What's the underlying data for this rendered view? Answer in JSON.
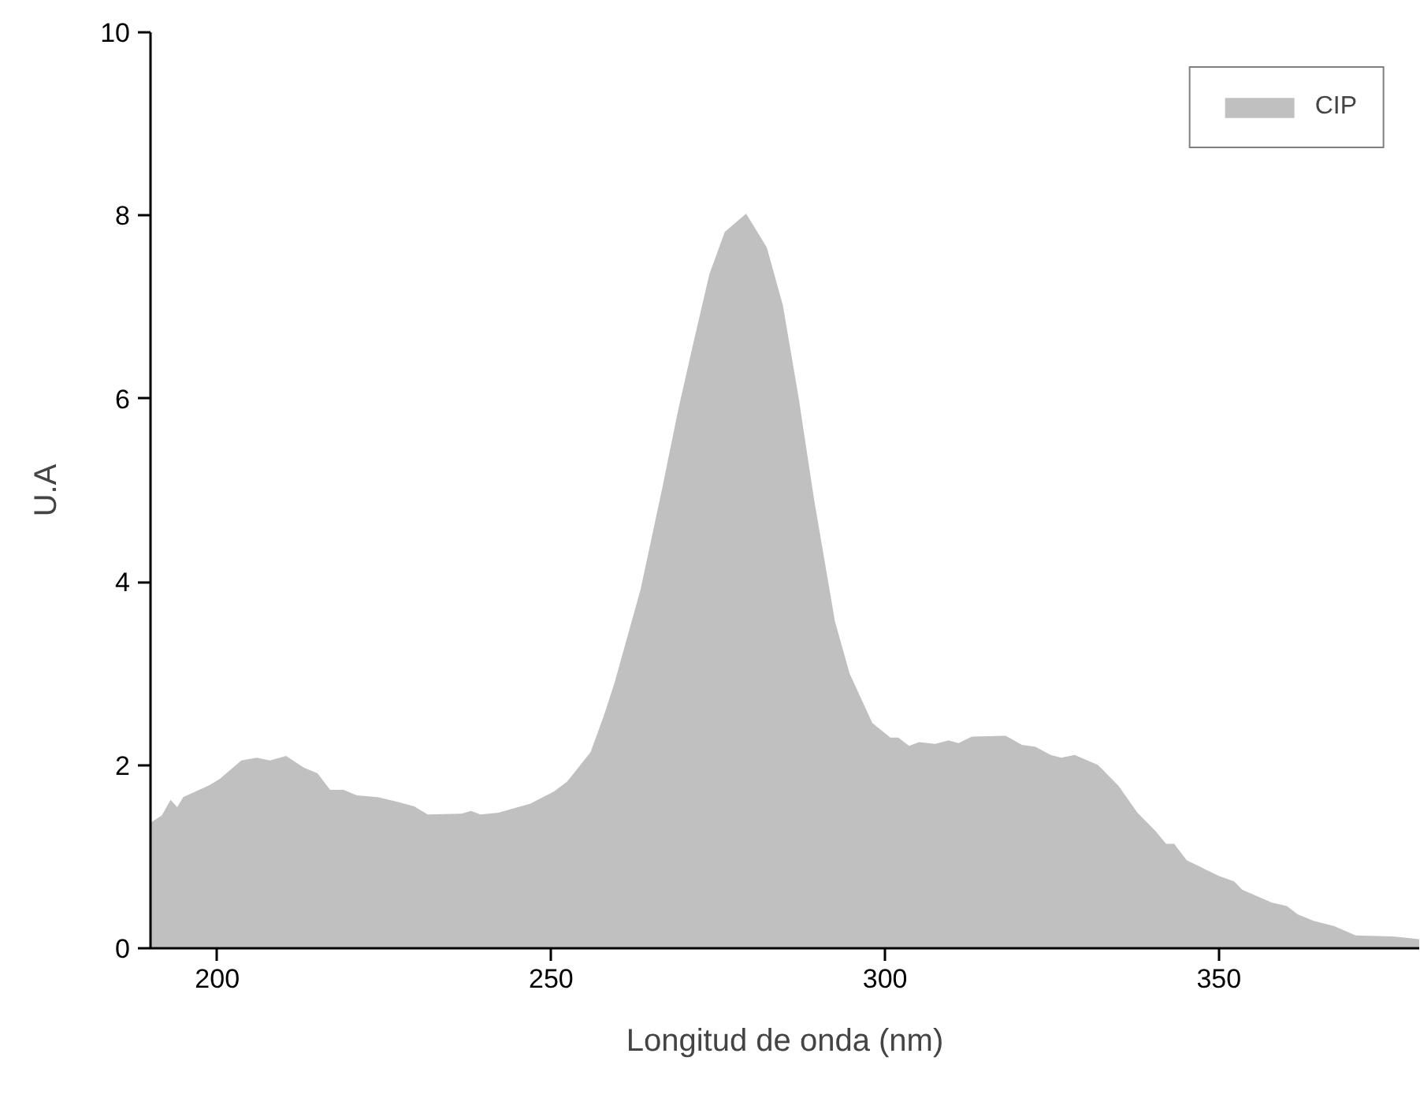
{
  "chart_data": {
    "type": "area",
    "xlabel": "Longitud de onda (nm)",
    "ylabel": "U.A",
    "series": [
      {
        "name": "CIP",
        "color": "#c0c0c0",
        "x": [
          190,
          191.7,
          193.0,
          194.0,
          194.9,
          198.8,
          200.4,
          203.6,
          205.9,
          207.9,
          210.3,
          213.0,
          215.0,
          216.9,
          218.9,
          220.9,
          224.0,
          226.4,
          229.5,
          231.5,
          236.6,
          238.0,
          239.4,
          242.1,
          246.9,
          250.4,
          252.4,
          255.9,
          257.9,
          259.5,
          263.4,
          266.6,
          269.0,
          271.3,
          273.7,
          276.0,
          279.2,
          282.3,
          284.7,
          287.0,
          289.4,
          292.5,
          294.7,
          298.1,
          300.8,
          302.0,
          303.6,
          305.1,
          307.5,
          309.5,
          311.0,
          313.0,
          318.1,
          320.5,
          322.5,
          324.8,
          326.4,
          328.4,
          331.9,
          335.0,
          337.8,
          340.5,
          342.1,
          343.3,
          345.2,
          350.0,
          352.3,
          353.5,
          357.9,
          360.2,
          361.8,
          364.2,
          367.3,
          370.5,
          376.0,
          380
        ],
        "values": [
          1.37,
          1.45,
          1.62,
          1.54,
          1.65,
          1.78,
          1.85,
          2.05,
          2.08,
          2.05,
          2.1,
          1.97,
          1.91,
          1.73,
          1.73,
          1.67,
          1.65,
          1.61,
          1.55,
          1.46,
          1.47,
          1.5,
          1.46,
          1.48,
          1.58,
          1.71,
          1.82,
          2.14,
          2.54,
          2.9,
          3.92,
          5.01,
          5.87,
          6.61,
          7.36,
          7.82,
          8.02,
          7.65,
          7.02,
          6.04,
          4.89,
          3.57,
          3.0,
          2.46,
          2.3,
          2.3,
          2.21,
          2.25,
          2.23,
          2.27,
          2.24,
          2.31,
          2.32,
          2.22,
          2.2,
          2.11,
          2.08,
          2.11,
          2.0,
          1.77,
          1.48,
          1.28,
          1.14,
          1.14,
          0.96,
          0.79,
          0.73,
          0.64,
          0.5,
          0.46,
          0.37,
          0.3,
          0.24,
          0.14,
          0.13,
          0.1
        ]
      }
    ],
    "xlim": [
      190,
      380
    ],
    "xticks": [
      200,
      250,
      300,
      350
    ],
    "ylim": [
      0,
      10
    ],
    "yticks": [
      0,
      2,
      4,
      6,
      8,
      10
    ],
    "grid": false,
    "legend": "top right"
  }
}
